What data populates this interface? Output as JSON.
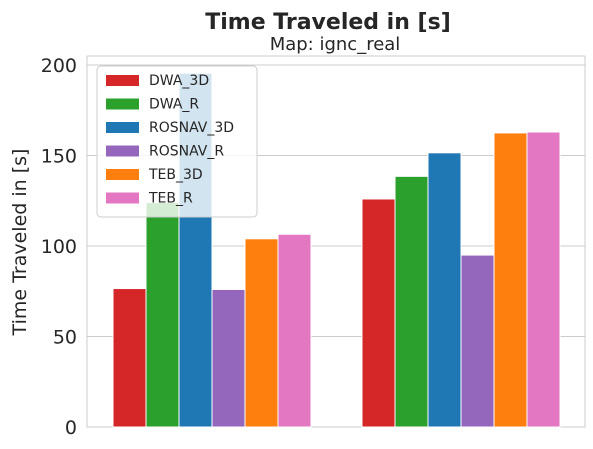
{
  "chart_data": {
    "type": "bar",
    "suptitle": "Time Traveled in [s]",
    "title": "Map: ignc_real",
    "xlabel": "",
    "ylabel": "Time Traveled in [s]",
    "ylim": [
      0,
      205
    ],
    "yticks": [
      0,
      50,
      100,
      150,
      200
    ],
    "grid": true,
    "legend_position": "top-left",
    "categories": [
      "",
      ""
    ],
    "series": [
      {
        "name": "DWA_3D",
        "color": "#d62728",
        "values": [
          76.5,
          126
        ]
      },
      {
        "name": "DWA_R",
        "color": "#2ca02c",
        "values": [
          124,
          138.5
        ]
      },
      {
        "name": "ROSNAV_3D",
        "color": "#1f77b4",
        "values": [
          195.5,
          151.5
        ]
      },
      {
        "name": "ROSNAV_R",
        "color": "#9467bd",
        "values": [
          76,
          95
        ]
      },
      {
        "name": "TEB_3D",
        "color": "#ff7f0e",
        "values": [
          104,
          162.5
        ]
      },
      {
        "name": "TEB_R",
        "color": "#e377c2",
        "values": [
          106.5,
          163
        ]
      }
    ]
  }
}
